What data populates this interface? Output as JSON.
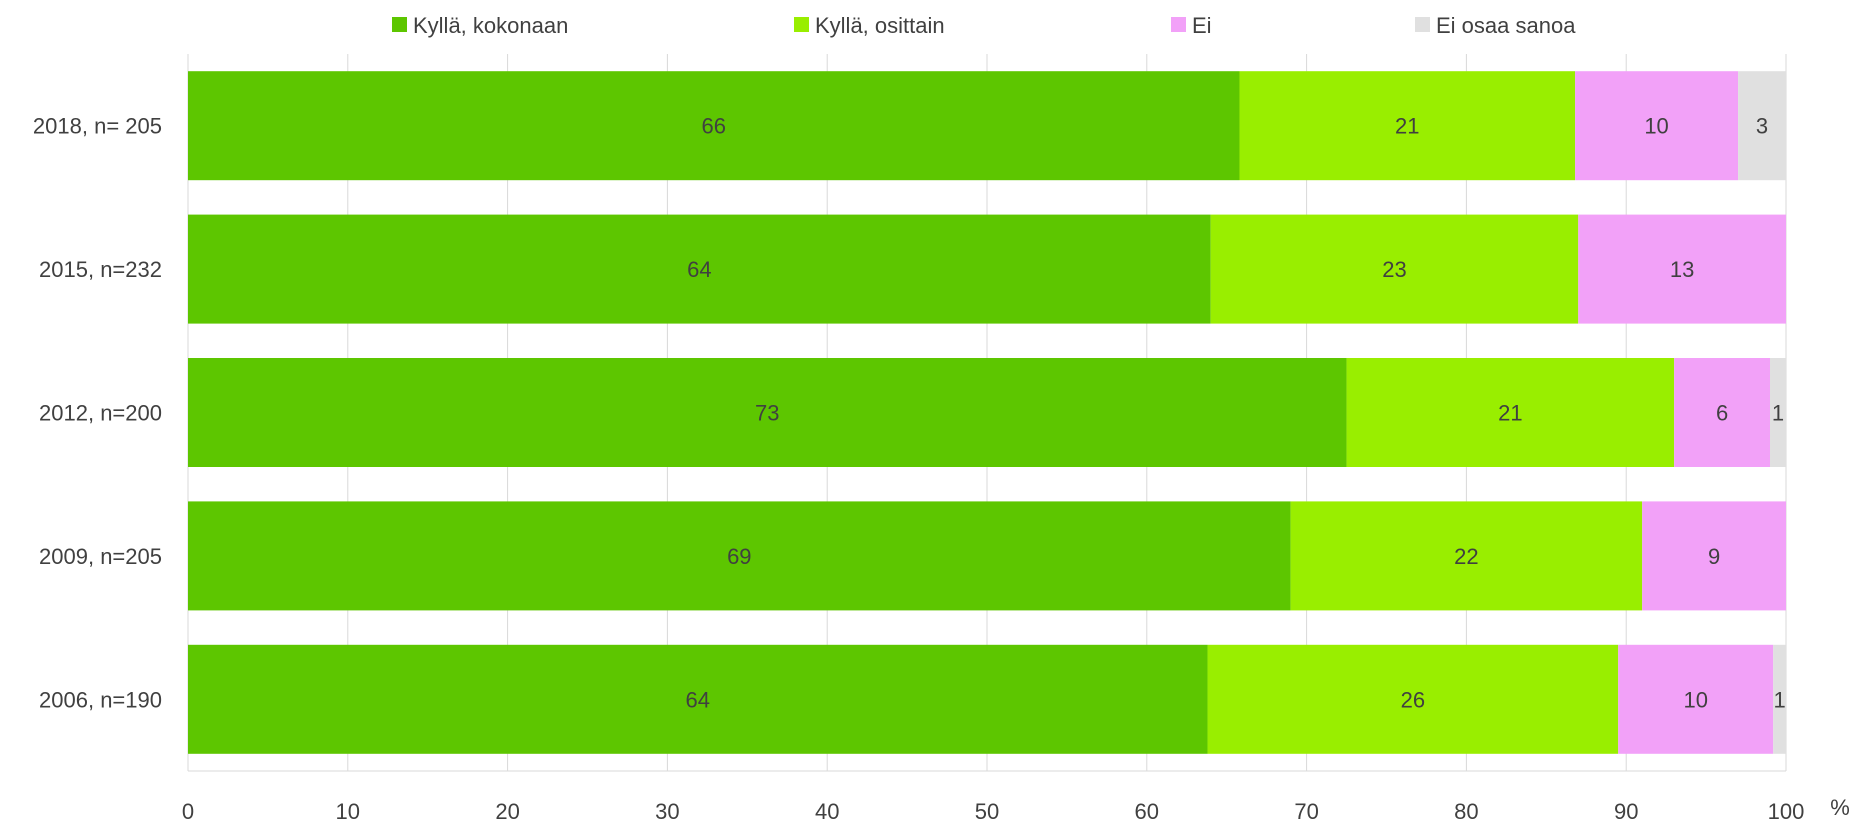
{
  "chart_data": {
    "type": "bar",
    "orientation": "horizontal",
    "stacked": true,
    "categories": [
      "2018, n= 205",
      "2015, n=232",
      "2012, n=200",
      "2009, n=205",
      "2006, n=190"
    ],
    "series": [
      {
        "name": "Kyllä, kokonaan",
        "color": "#5DC600",
        "values": [
          65.8,
          64.0,
          72.5,
          69.0,
          63.8
        ],
        "labels": [
          "66",
          "64",
          "73",
          "69",
          "64"
        ]
      },
      {
        "name": "Kyllä, osittain",
        "color": "#99EE00",
        "values": [
          21.0,
          23.0,
          20.5,
          22.0,
          25.7
        ],
        "labels": [
          "21",
          "23",
          "21",
          "22",
          "26"
        ]
      },
      {
        "name": "Ei",
        "color": "#F2A1F8",
        "values": [
          10.2,
          13.0,
          6.0,
          9.0,
          9.7
        ],
        "labels": [
          "10",
          "13",
          "6",
          "9",
          "10"
        ]
      },
      {
        "name": "Ei osaa sanoa",
        "color": "#E0E0E0",
        "values": [
          3.0,
          0,
          1.0,
          0,
          0.8
        ],
        "labels": [
          "3",
          "",
          "1",
          "",
          "1"
        ]
      }
    ],
    "xlim": [
      0,
      100
    ],
    "xticks": [
      "0",
      "10",
      "20",
      "30",
      "40",
      "50",
      "60",
      "70",
      "80",
      "90",
      "100"
    ],
    "x_unit": "%",
    "grid": "vertical",
    "legend_position": "top"
  }
}
